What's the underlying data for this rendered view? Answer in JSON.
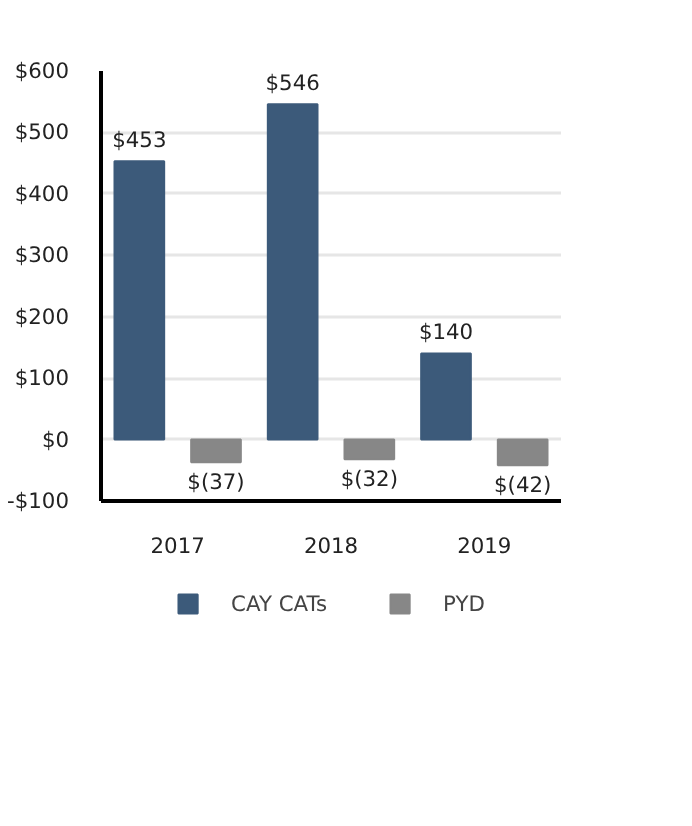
{
  "chart_data": {
    "type": "bar",
    "categories": [
      "2017",
      "2018",
      "2019"
    ],
    "series": [
      {
        "name": "CAY CATs",
        "color": "#3c5a7a",
        "values": [
          453,
          546,
          140
        ],
        "value_labels": [
          "$453",
          "$546",
          "$140"
        ]
      },
      {
        "name": "PYD",
        "color": "#878787",
        "values": [
          -37,
          -32,
          -42
        ],
        "value_labels": [
          "$(37)",
          "$(32)",
          "$(42)"
        ]
      }
    ],
    "ylim": [
      -100,
      600
    ],
    "yticks": [
      {
        "value": -100,
        "label": "-$100"
      },
      {
        "value": 0,
        "label": "$0"
      },
      {
        "value": 100,
        "label": "$100"
      },
      {
        "value": 200,
        "label": "$200"
      },
      {
        "value": 300,
        "label": "$300"
      },
      {
        "value": 400,
        "label": "$400"
      },
      {
        "value": 500,
        "label": "$500"
      },
      {
        "value": 600,
        "label": "$600"
      }
    ],
    "grid": "y",
    "legend": "bottom"
  }
}
